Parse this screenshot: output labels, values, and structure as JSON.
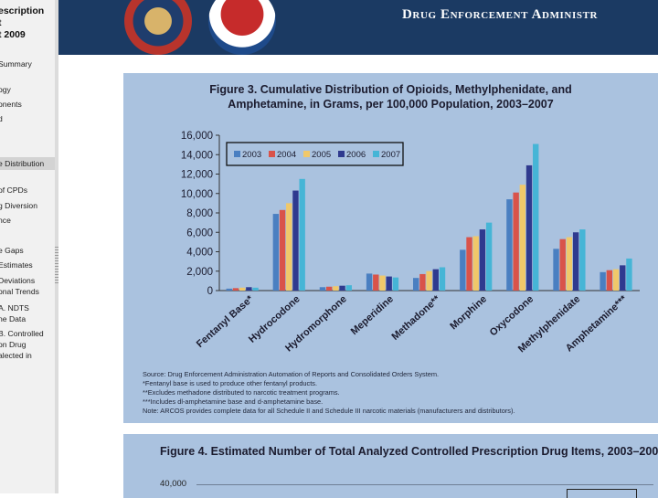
{
  "sidebar": {
    "title_lines": [
      "escription",
      "t",
      "t 2009"
    ],
    "items": [
      {
        "label": "Summary",
        "selected": false
      },
      {
        "label": "ogy",
        "selected": false
      },
      {
        "label": "onents",
        "selected": false
      },
      {
        "label": "d",
        "selected": false
      },
      {
        "label": "e Distribution",
        "selected": true
      },
      {
        "label": "of CPDs",
        "selected": false
      },
      {
        "label": "g Diversion",
        "selected": false
      },
      {
        "label": "nce",
        "selected": false
      },
      {
        "label": "e Gaps",
        "selected": false
      },
      {
        "label": "Estimates",
        "selected": false
      },
      {
        "label": "Deviations",
        "selected": false
      },
      {
        "label": "onal Trends",
        "selected": false
      },
      {
        "label": "A. NDTS",
        "selected": false
      },
      {
        "label": "ne Data",
        "selected": false
      },
      {
        "label": "B. Controlled",
        "selected": false
      },
      {
        "label": "on Drug",
        "selected": false
      },
      {
        "label": "alected in",
        "selected": false
      }
    ]
  },
  "header": {
    "title": "Drug Enforcement Administr"
  },
  "figure3": {
    "title_line1": "Figure 3. Cumulative Distribution of Opioids, Methylphenidate, and",
    "title_line2": "Amphetamine, in Grams, per 100,000 Population, 2003–2007",
    "notes": [
      "Source: Drug Enforcement Administration Automation of Reports and Consolidated Orders System.",
      "*Fentanyl base is used to produce other fentanyl products.",
      "**Excludes methadone distributed to narcotic treatment programs.",
      "***Includes dl-amphetamine base and d-amphetamine base.",
      "Note: ARCOS provides complete data for all Schedule II and Schedule III narcotic materials (manufacturers and distributors)."
    ]
  },
  "figure4": {
    "title": "Figure 4. Estimated Number of Total Analyzed Controlled Prescription Drug Items, 2003–2007",
    "first_tick": "40,000"
  },
  "colors": {
    "2003": "#4a7fc1",
    "2004": "#d9534a",
    "2005": "#f0c86a",
    "2006": "#2f3a8f",
    "2007": "#46b5d6"
  },
  "chart_data": {
    "type": "bar",
    "title": "Figure 3. Cumulative Distribution of Opioids, Methylphenidate, and Amphetamine, in Grams, per 100,000 Population, 2003–2007",
    "xlabel": "",
    "ylabel": "",
    "ylim": [
      0,
      16000
    ],
    "yticks": [
      0,
      2000,
      4000,
      6000,
      8000,
      10000,
      12000,
      14000,
      16000
    ],
    "categories": [
      "Fentanyl Base*",
      "Hydrocodone",
      "Hydromorphone",
      "Meperidine",
      "Methadone**",
      "Morphine",
      "Oxycodone",
      "Methylphenidate",
      "Amphetamine***"
    ],
    "legend_position": "top-left",
    "series": [
      {
        "name": "2003",
        "values": [
          200,
          7900,
          350,
          1750,
          1300,
          4200,
          9400,
          4300,
          1900
        ]
      },
      {
        "name": "2004",
        "values": [
          250,
          8300,
          400,
          1650,
          1700,
          5500,
          10100,
          5300,
          2100
        ]
      },
      {
        "name": "2005",
        "values": [
          300,
          9000,
          450,
          1550,
          2000,
          5600,
          10900,
          5500,
          2200
        ]
      },
      {
        "name": "2006",
        "values": [
          350,
          10300,
          500,
          1450,
          2200,
          6300,
          12900,
          6000,
          2600
        ]
      },
      {
        "name": "2007",
        "values": [
          300,
          11500,
          550,
          1350,
          2400,
          7000,
          15100,
          6300,
          3300
        ]
      }
    ]
  }
}
